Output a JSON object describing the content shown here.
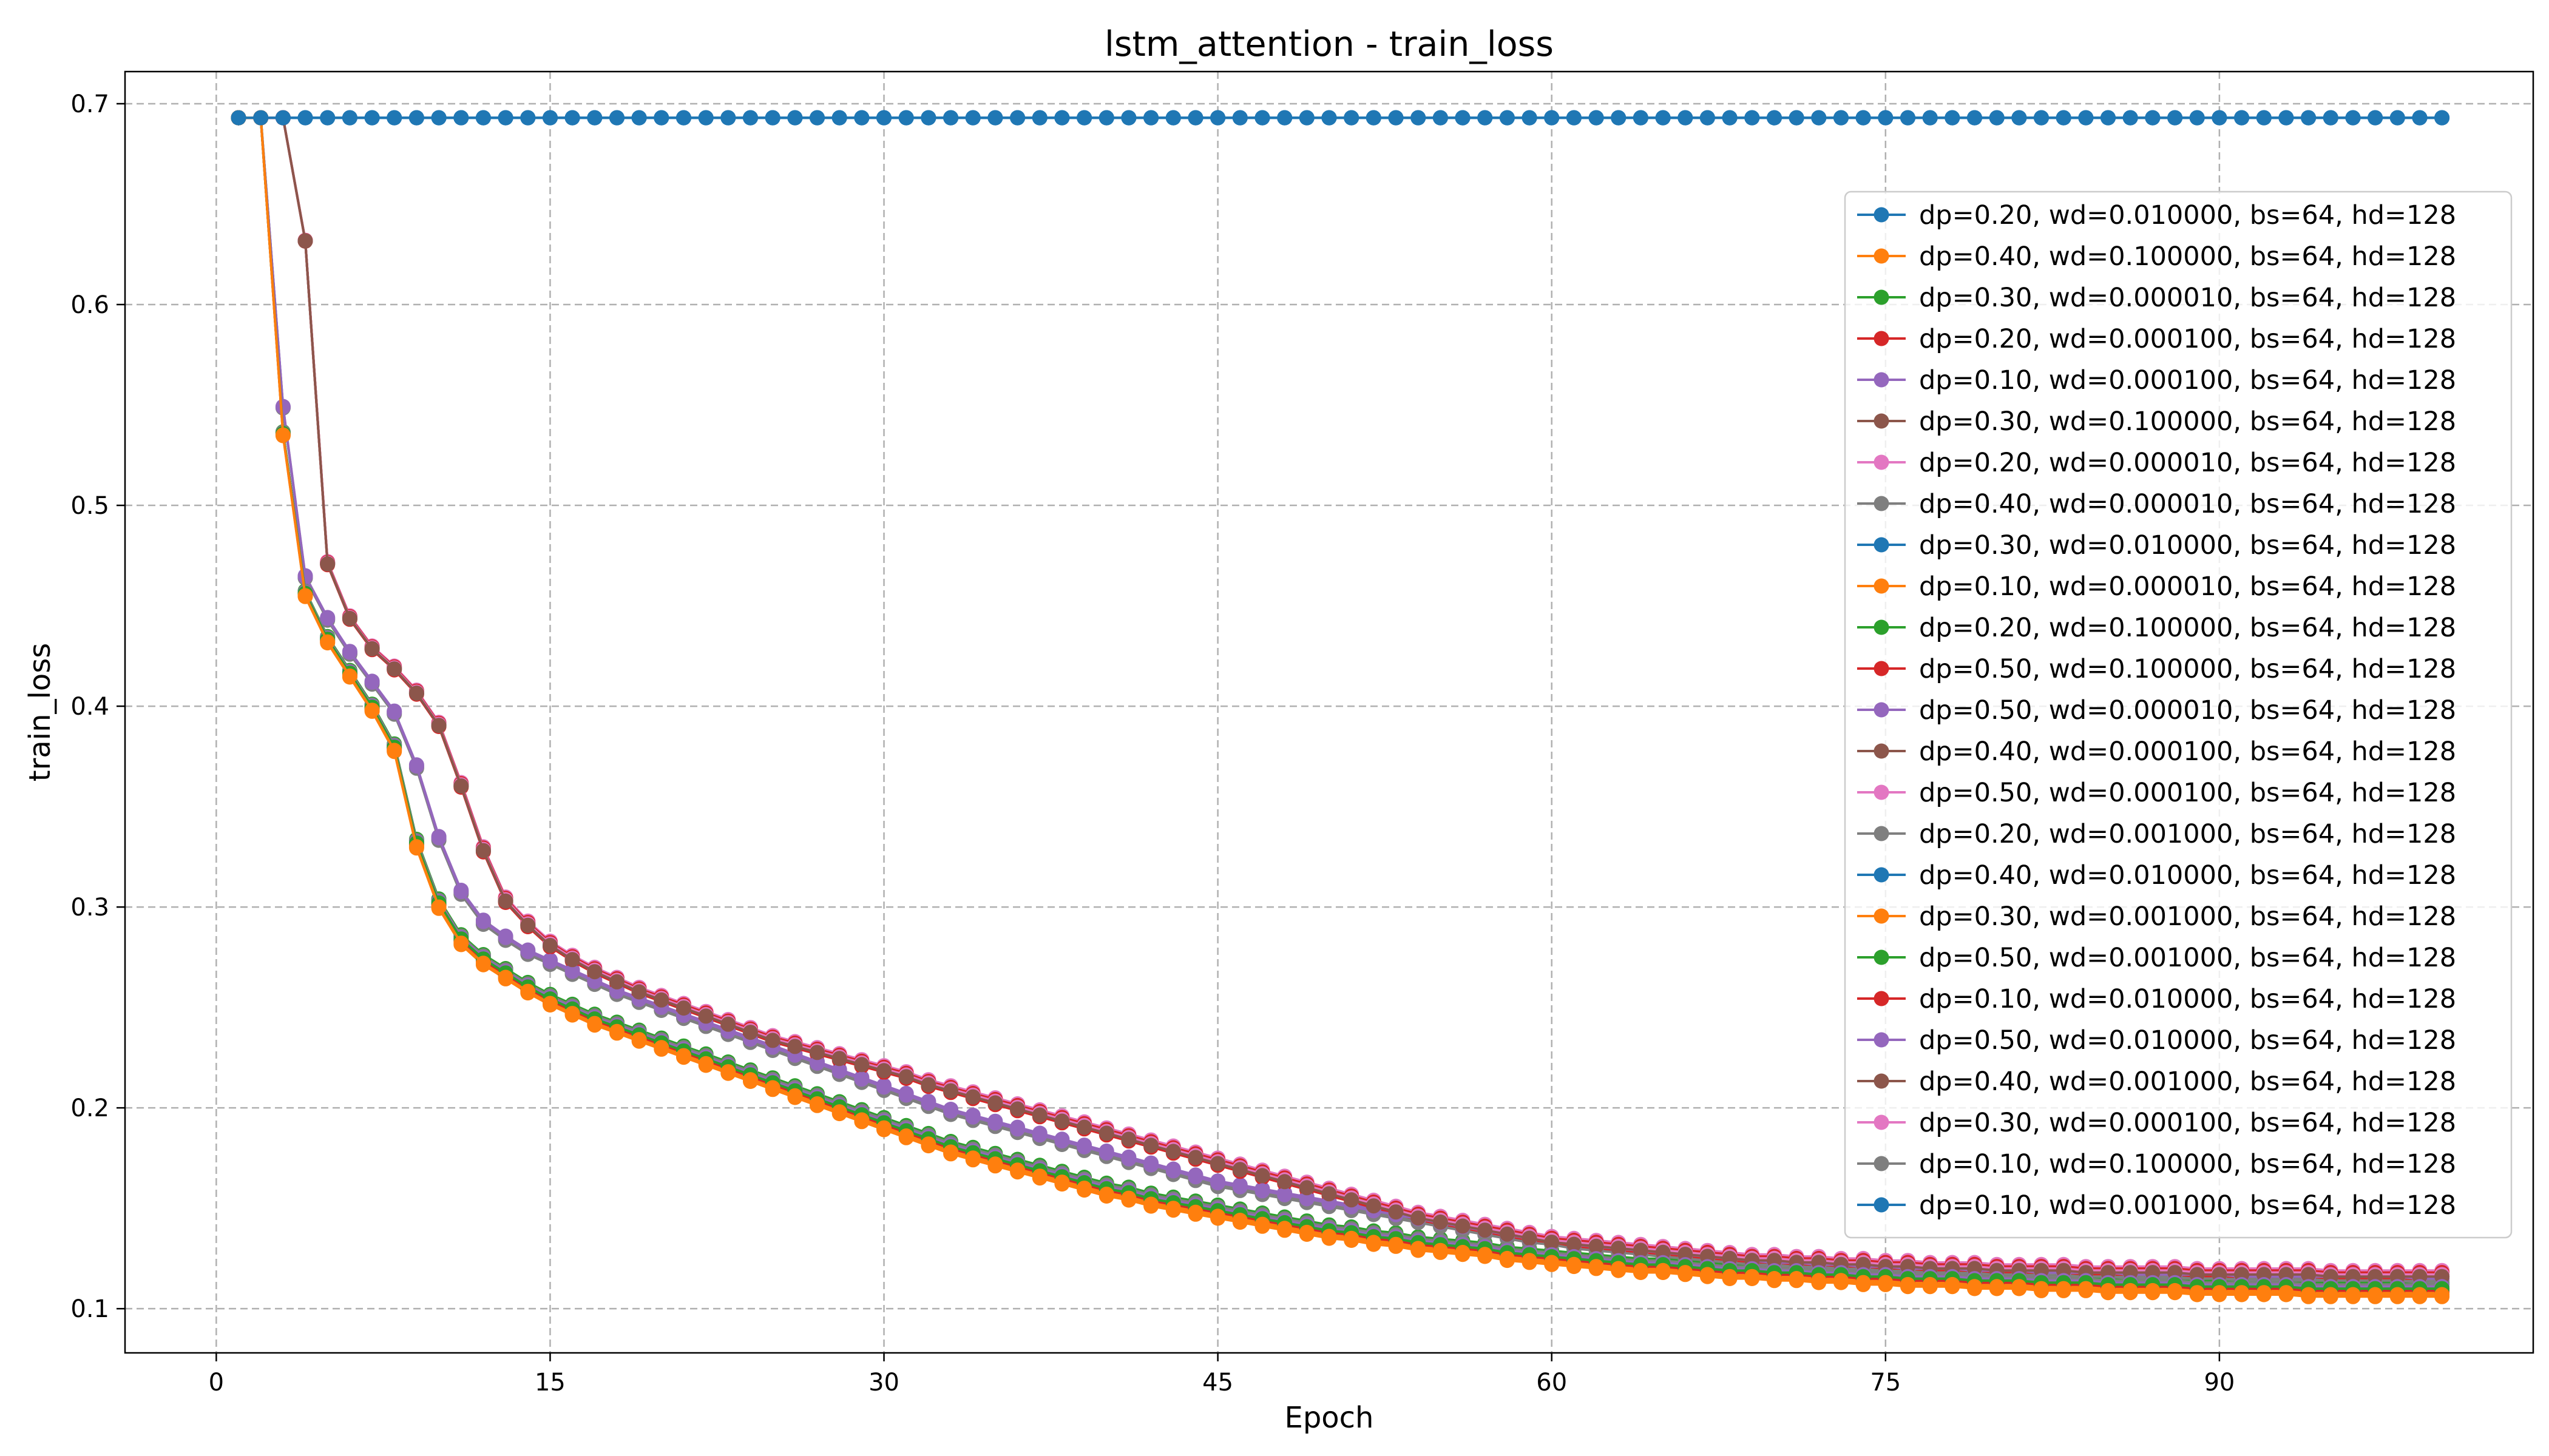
{
  "chart_data": {
    "type": "line",
    "title": "lstm_attention - train_loss",
    "xlabel": "Epoch",
    "ylabel": "train_loss",
    "xlim": [
      -4.1,
      104.1
    ],
    "ylim": [
      0.078,
      0.716
    ],
    "xticks": [
      0,
      15,
      30,
      45,
      60,
      75,
      90
    ],
    "yticks": [
      0.1,
      0.2,
      0.3,
      0.4,
      0.5,
      0.6,
      0.7
    ],
    "grid": true,
    "legend_position": "center-right",
    "markers": true,
    "series": [
      {
        "name": "dp=0.20, wd=0.010000, bs=64, hd=128",
        "color": "#1f77b4",
        "profile": "flat",
        "final": 0.693
      },
      {
        "name": "dp=0.40, wd=0.100000, bs=64, hd=128",
        "color": "#ff7f0e",
        "profile": "fast",
        "final": 0.107
      },
      {
        "name": "dp=0.30, wd=0.000010, bs=64, hd=128",
        "color": "#2ca02c",
        "profile": "fast",
        "final": 0.11
      },
      {
        "name": "dp=0.20, wd=0.000100, bs=64, hd=128",
        "color": "#d62728",
        "profile": "fast",
        "final": 0.109
      },
      {
        "name": "dp=0.10, wd=0.000100, bs=64, hd=128",
        "color": "#9467bd",
        "profile": "fast",
        "final": 0.111
      },
      {
        "name": "dp=0.30, wd=0.100000, bs=64, hd=128",
        "color": "#8c564b",
        "profile": "slow",
        "final": 0.116
      },
      {
        "name": "dp=0.20, wd=0.000010, bs=64, hd=128",
        "color": "#e377c2",
        "profile": "slow",
        "final": 0.117
      },
      {
        "name": "dp=0.40, wd=0.000010, bs=64, hd=128",
        "color": "#7f7f7f",
        "profile": "fast",
        "final": 0.112
      },
      {
        "name": "dp=0.30, wd=0.010000, bs=64, hd=128",
        "color": "#1f77b4",
        "profile": "flat",
        "final": 0.693
      },
      {
        "name": "dp=0.10, wd=0.000010, bs=64, hd=128",
        "color": "#ff7f0e",
        "profile": "fast",
        "final": 0.108
      },
      {
        "name": "dp=0.20, wd=0.100000, bs=64, hd=128",
        "color": "#2ca02c",
        "profile": "fast",
        "final": 0.112
      },
      {
        "name": "dp=0.50, wd=0.100000, bs=64, hd=128",
        "color": "#d62728",
        "profile": "slow",
        "final": 0.118
      },
      {
        "name": "dp=0.50, wd=0.000010, bs=64, hd=128",
        "color": "#9467bd",
        "profile": "mid",
        "final": 0.115
      },
      {
        "name": "dp=0.40, wd=0.000100, bs=64, hd=128",
        "color": "#8c564b",
        "profile": "slow",
        "final": 0.116
      },
      {
        "name": "dp=0.50, wd=0.000100, bs=64, hd=128",
        "color": "#e377c2",
        "profile": "slow",
        "final": 0.119
      },
      {
        "name": "dp=0.20, wd=0.001000, bs=64, hd=128",
        "color": "#7f7f7f",
        "profile": "mid",
        "final": 0.113
      },
      {
        "name": "dp=0.40, wd=0.010000, bs=64, hd=128",
        "color": "#1f77b4",
        "profile": "flat",
        "final": 0.693
      },
      {
        "name": "dp=0.30, wd=0.001000, bs=64, hd=128",
        "color": "#ff7f0e",
        "profile": "fast",
        "final": 0.106
      },
      {
        "name": "dp=0.50, wd=0.001000, bs=64, hd=128",
        "color": "#2ca02c",
        "profile": "fast",
        "final": 0.113
      },
      {
        "name": "dp=0.10, wd=0.010000, bs=64, hd=128",
        "color": "#d62728",
        "profile": "slow",
        "final": 0.115
      },
      {
        "name": "dp=0.50, wd=0.010000, bs=64, hd=128",
        "color": "#9467bd",
        "profile": "mid",
        "final": 0.116
      },
      {
        "name": "dp=0.40, wd=0.001000, bs=64, hd=128",
        "color": "#8c564b",
        "profile": "slow",
        "final": 0.117
      },
      {
        "name": "dp=0.30, wd=0.000100, bs=64, hd=128",
        "color": "#e377c2",
        "profile": "slow",
        "final": 0.118
      },
      {
        "name": "dp=0.10, wd=0.100000, bs=64, hd=128",
        "color": "#7f7f7f",
        "profile": "mid",
        "final": 0.114
      },
      {
        "name": "dp=0.10, wd=0.001000, bs=64, hd=128",
        "color": "#1f77b4",
        "profile": "flat",
        "final": 0.693
      }
    ]
  }
}
